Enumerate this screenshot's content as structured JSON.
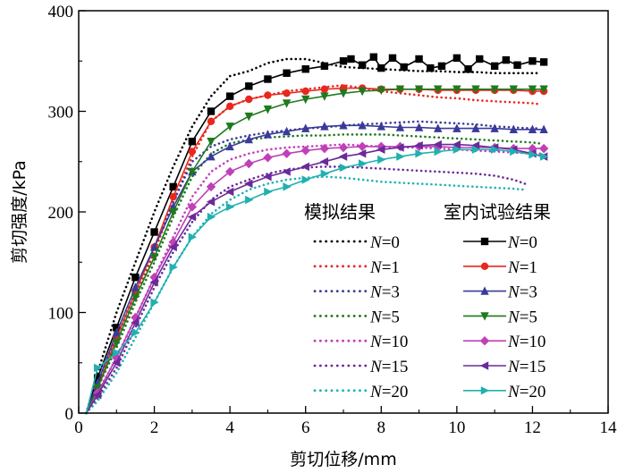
{
  "chart_data": {
    "type": "line",
    "title": "",
    "xlabel": "剪切位移/mm",
    "ylabel": "剪切强度/kPa",
    "xlim": [
      0,
      14
    ],
    "ylim": [
      0,
      400
    ],
    "xticks": [
      "0",
      "2",
      "4",
      "6",
      "8",
      "10",
      "12",
      "14"
    ],
    "yticks": [
      "0",
      "100",
      "200",
      "300",
      "400"
    ],
    "grid": false,
    "legend_position": "lower-right",
    "legend_groups": [
      "模拟结果",
      "室内试验结果"
    ],
    "legend_entries": [
      {
        "n_var": "N",
        "n_value": "=0"
      },
      {
        "n_var": "N",
        "n_value": "=1"
      },
      {
        "n_var": "N",
        "n_value": "=3"
      },
      {
        "n_var": "N",
        "n_value": "=5"
      },
      {
        "n_var": "N",
        "n_value": "=10"
      },
      {
        "n_var": "N",
        "n_value": "=15"
      },
      {
        "n_var": "N",
        "n_value": "=20"
      }
    ],
    "colors": [
      "#000000",
      "#e8281e",
      "#3a3a9a",
      "#1e7a1e",
      "#c040b8",
      "#6a2a9a",
      "#21b0b0"
    ],
    "markers": [
      "square",
      "circle",
      "triangle-up",
      "triangle-down",
      "diamond",
      "triangle-left",
      "triangle-right"
    ],
    "series": [
      {
        "group": "模拟结果",
        "n": 0,
        "style": "dotted",
        "x": [
          0.2,
          0.5,
          1,
          1.5,
          2,
          2.5,
          3,
          3.5,
          4,
          4.5,
          5,
          5.5,
          6,
          6.5,
          7,
          7.5,
          8,
          8.5,
          9,
          9.5,
          10,
          10.5,
          11,
          11.5,
          12,
          12.2
        ],
        "y": [
          0,
          40,
          100,
          150,
          200,
          245,
          285,
          315,
          335,
          340,
          348,
          352,
          352,
          348,
          344,
          343,
          342,
          341,
          340,
          340,
          339,
          339,
          338,
          338,
          338,
          338
        ]
      },
      {
        "group": "模拟结果",
        "n": 1,
        "style": "dotted",
        "x": [
          0.2,
          0.5,
          1,
          1.5,
          2,
          2.5,
          3,
          3.5,
          4,
          4.5,
          5,
          5.5,
          6,
          6.5,
          7,
          7.5,
          8,
          8.5,
          9,
          9.5,
          10,
          10.5,
          11,
          11.5,
          12,
          12.2
        ],
        "y": [
          0,
          25,
          70,
          115,
          160,
          210,
          255,
          290,
          305,
          312,
          316,
          320,
          322,
          324,
          326,
          323,
          320,
          318,
          316,
          314,
          313,
          311,
          310,
          309,
          308,
          307
        ]
      },
      {
        "group": "模拟结果",
        "n": 3,
        "style": "dotted",
        "x": [
          0.2,
          0.5,
          1,
          1.5,
          2,
          2.5,
          3,
          3.5,
          4,
          4.5,
          5,
          5.5,
          6,
          6.5,
          7,
          7.5,
          8,
          8.5,
          9,
          9.5,
          10,
          10.5,
          11,
          11.5,
          12,
          12.2
        ],
        "y": [
          0,
          30,
          75,
          120,
          165,
          210,
          250,
          265,
          272,
          276,
          279,
          281,
          283,
          284,
          286,
          287,
          288,
          289,
          290,
          289,
          288,
          287,
          285,
          284,
          283,
          283
        ]
      },
      {
        "group": "模拟结果",
        "n": 5,
        "style": "dotted",
        "x": [
          0.2,
          0.5,
          1,
          1.5,
          2,
          2.5,
          3,
          3.5,
          4,
          4.5,
          5,
          5.5,
          6,
          6.5,
          7,
          7.5,
          8,
          8.5,
          9,
          9.5,
          10,
          10.5,
          11,
          11.5,
          12,
          12.2
        ],
        "y": [
          0,
          25,
          65,
          110,
          150,
          195,
          235,
          258,
          268,
          272,
          274,
          275,
          276,
          276,
          277,
          277,
          277,
          276,
          275,
          274,
          273,
          272,
          271,
          270,
          269,
          268
        ]
      },
      {
        "group": "模拟结果",
        "n": 10,
        "style": "dotted",
        "x": [
          0.2,
          0.5,
          1,
          1.5,
          2,
          2.5,
          3,
          3.5,
          4,
          4.5,
          5,
          5.5,
          6,
          6.5,
          7,
          7.5,
          8,
          8.5,
          9,
          9.5,
          10,
          10.5,
          11,
          11.5,
          12,
          12.2
        ],
        "y": [
          0,
          20,
          55,
          95,
          135,
          175,
          215,
          240,
          252,
          258,
          262,
          264,
          265,
          266,
          267,
          266,
          265,
          264,
          264,
          263,
          262,
          261,
          260,
          259,
          258,
          258
        ]
      },
      {
        "group": "模拟结果",
        "n": 15,
        "style": "dotted",
        "x": [
          0.2,
          0.5,
          1,
          1.5,
          2,
          2.5,
          3,
          3.5,
          4,
          4.5,
          5,
          5.5,
          6,
          6.5,
          7,
          7.5,
          8,
          8.5,
          9,
          9.5,
          10,
          10.5,
          11,
          11.5,
          11.8
        ],
        "y": [
          0,
          15,
          45,
          85,
          125,
          160,
          190,
          212,
          225,
          232,
          238,
          242,
          244,
          245,
          245,
          244,
          243,
          242,
          241,
          240,
          239,
          238,
          236,
          232,
          228
        ]
      },
      {
        "group": "模拟结果",
        "n": 20,
        "style": "dotted",
        "x": [
          0.2,
          0.5,
          1,
          1.5,
          2,
          2.5,
          3,
          3.5,
          4,
          4.5,
          5,
          5.5,
          6,
          6.5,
          7,
          7.5,
          8,
          8.5,
          9,
          9.5,
          10,
          10.5,
          11,
          11.5,
          11.8
        ],
        "y": [
          0,
          12,
          40,
          75,
          110,
          145,
          175,
          198,
          212,
          222,
          228,
          232,
          234,
          235,
          234,
          232,
          230,
          229,
          228,
          227,
          226,
          225,
          224,
          223,
          222
        ]
      },
      {
        "group": "室内试验结果",
        "n": 0,
        "style": "solid",
        "x": [
          0.2,
          0.5,
          1,
          1.5,
          2,
          2.5,
          3,
          3.5,
          4,
          4.5,
          5,
          5.5,
          6,
          6.5,
          7,
          7.2,
          7.5,
          7.8,
          8,
          8.3,
          8.6,
          9,
          9.3,
          9.6,
          10,
          10.3,
          10.6,
          11,
          11.3,
          11.6,
          12,
          12.3
        ],
        "y": [
          0,
          35,
          85,
          135,
          180,
          225,
          270,
          300,
          315,
          325,
          332,
          338,
          342,
          345,
          350,
          352,
          346,
          354,
          343,
          353,
          344,
          352,
          343,
          345,
          353,
          342,
          352,
          345,
          351,
          346,
          350,
          349
        ]
      },
      {
        "group": "室内试验结果",
        "n": 1,
        "style": "solid",
        "x": [
          0.2,
          0.5,
          1,
          1.5,
          2,
          2.5,
          3,
          3.5,
          4,
          4.5,
          5,
          5.5,
          6,
          6.5,
          7,
          7.5,
          8,
          8.5,
          9,
          9.5,
          10,
          10.5,
          11,
          11.5,
          12,
          12.3
        ],
        "y": [
          0,
          25,
          75,
          120,
          165,
          215,
          260,
          290,
          305,
          312,
          316,
          318,
          320,
          322,
          323,
          323,
          322,
          322,
          322,
          321,
          321,
          321,
          321,
          321,
          320,
          320
        ]
      },
      {
        "group": "室内试验结果",
        "n": 3,
        "style": "solid",
        "x": [
          0.2,
          0.5,
          1,
          1.5,
          2,
          2.5,
          3,
          3.5,
          4,
          4.5,
          5,
          5.5,
          6,
          6.5,
          7,
          7.5,
          8,
          8.5,
          9,
          9.5,
          10,
          10.5,
          11,
          11.5,
          12,
          12.3
        ],
        "y": [
          0,
          30,
          80,
          125,
          165,
          205,
          240,
          255,
          265,
          272,
          277,
          280,
          283,
          285,
          286,
          286,
          285,
          284,
          284,
          283,
          283,
          283,
          283,
          282,
          282,
          282
        ]
      },
      {
        "group": "室内试验结果",
        "n": 5,
        "style": "solid",
        "x": [
          0.2,
          0.5,
          1,
          1.5,
          2,
          2.5,
          3,
          3.5,
          4,
          4.5,
          5,
          5.5,
          6,
          6.5,
          7,
          7.5,
          8,
          8.5,
          9,
          9.5,
          10,
          10.5,
          11,
          11.5,
          12,
          12.3
        ],
        "y": [
          0,
          25,
          70,
          115,
          155,
          200,
          240,
          270,
          285,
          295,
          302,
          308,
          312,
          315,
          318,
          320,
          321,
          322,
          322,
          322,
          322,
          322,
          322,
          322,
          322,
          322
        ]
      },
      {
        "group": "室内试验结果",
        "n": 10,
        "style": "solid",
        "x": [
          0.2,
          0.5,
          1,
          1.5,
          2,
          2.5,
          3,
          3.5,
          4,
          4.5,
          5,
          5.5,
          6,
          6.5,
          7,
          7.5,
          8,
          8.5,
          9,
          9.5,
          10,
          10.5,
          11,
          11.5,
          12,
          12.3
        ],
        "y": [
          0,
          20,
          55,
          95,
          135,
          170,
          205,
          225,
          240,
          248,
          254,
          258,
          261,
          263,
          264,
          265,
          265,
          265,
          265,
          265,
          264,
          264,
          264,
          263,
          263,
          263
        ]
      },
      {
        "group": "室内试验结果",
        "n": 15,
        "style": "solid",
        "x": [
          0.2,
          0.5,
          1,
          1.5,
          2,
          2.5,
          3,
          3.5,
          4,
          4.5,
          5,
          5.5,
          6,
          6.5,
          7,
          7.5,
          8,
          8.5,
          9,
          9.5,
          10,
          10.5,
          11,
          11.5,
          12,
          12.3
        ],
        "y": [
          0,
          18,
          50,
          90,
          130,
          165,
          195,
          210,
          220,
          228,
          235,
          240,
          245,
          250,
          255,
          258,
          262,
          264,
          266,
          267,
          267,
          266,
          264,
          262,
          258,
          255
        ]
      },
      {
        "group": "室内试验结果",
        "n": 20,
        "style": "solid",
        "x": [
          0.2,
          0.5,
          1,
          1.5,
          2,
          2.5,
          3,
          3.5,
          4,
          4.5,
          5,
          5.5,
          6,
          6.5,
          7,
          7.5,
          8,
          8.5,
          9,
          9.5,
          10,
          10.5,
          11,
          11.5,
          12,
          12.3
        ],
        "y": [
          0,
          45,
          60,
          80,
          110,
          145,
          175,
          195,
          205,
          212,
          220,
          225,
          232,
          238,
          244,
          248,
          252,
          255,
          258,
          260,
          262,
          262,
          262,
          260,
          257,
          255
        ]
      }
    ]
  }
}
